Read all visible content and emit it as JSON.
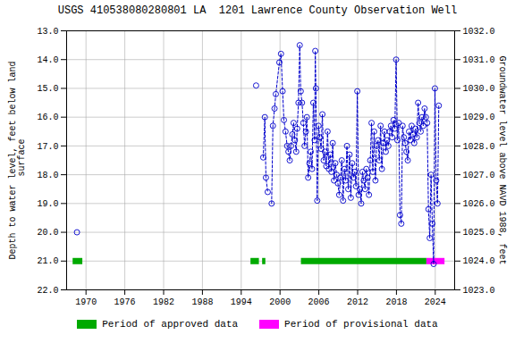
{
  "chart_data": {
    "type": "line",
    "title": "USGS 410538080280801 LA  1201 Lawrence County Observation Well",
    "ylabel": "Depth to water level, feet below land\n surface",
    "y2label": "Groundwater level above NAVD 1988, feet",
    "x": [
      1968.6,
      null,
      1996.3,
      null,
      1997.4,
      1997.65,
      1997.82,
      1998.1,
      null,
      1998.7,
      1998.9,
      1999.15,
      1999.35,
      1999.9,
      2000.15,
      2000.4,
      2000.6,
      2000.85,
      2001.1,
      2001.3,
      2001.5,
      2001.7,
      2001.9,
      2002.1,
      2002.3,
      2002.5,
      2002.65,
      2002.85,
      2003.05,
      2003.2,
      2003.4,
      2003.6,
      2003.8,
      2004.0,
      2004.15,
      2004.35,
      2004.55,
      2004.75,
      2004.95,
      2005.15,
      2005.35,
      2005.45,
      2005.55,
      2005.75,
      2005.95,
      2006.15,
      2006.35,
      2006.55,
      2006.75,
      2006.95,
      2007.15,
      2007.35,
      2007.55,
      2007.75,
      2007.95,
      2008.15,
      2008.35,
      2008.55,
      2008.75,
      2008.95,
      2009.15,
      2009.35,
      2009.55,
      2009.75,
      2009.95,
      2010.15,
      2010.35,
      2010.55,
      2010.75,
      2010.95,
      2011.15,
      2011.35,
      2011.55,
      2011.75,
      2011.95,
      2012.15,
      2012.35,
      2012.55,
      2012.75,
      2012.95,
      2013.15,
      2013.35,
      2013.55,
      2013.75,
      2013.95,
      2014.15,
      2014.35,
      2014.55,
      2014.75,
      2014.95,
      2015.15,
      2015.35,
      2015.55,
      2015.75,
      2015.95,
      2016.15,
      2016.35,
      2016.55,
      2016.75,
      2016.95,
      2017.15,
      2017.35,
      2017.55,
      2017.75,
      2017.95,
      2018.15,
      2018.35,
      2018.55,
      2018.75,
      2018.95,
      2019.15,
      2019.35,
      2019.55,
      2019.75,
      2019.95,
      2020.15,
      2020.35,
      2020.55,
      2020.75,
      2020.95,
      2021.15,
      2021.35,
      2021.55,
      2021.75,
      2021.95,
      2022.15,
      2022.35,
      2022.55,
      2022.75,
      2022.95,
      2023.15,
      2023.35,
      2023.55,
      2023.75,
      2023.95,
      2024.15,
      2024.35,
      2024.55
    ],
    "values": [
      20.0,
      null,
      14.9,
      null,
      17.4,
      16.0,
      18.1,
      18.6,
      null,
      19.0,
      16.3,
      15.7,
      15.2,
      14.1,
      13.8,
      15.1,
      16.1,
      16.5,
      17.0,
      17.2,
      17.5,
      17.0,
      16.6,
      16.2,
      16.8,
      17.2,
      16.4,
      15.5,
      13.5,
      15.1,
      15.5,
      16.2,
      17.0,
      16.5,
      16.0,
      18.1,
      17.6,
      17.2,
      17.8,
      15.5,
      16.8,
      13.7,
      15.0,
      18.9,
      16.3,
      16.7,
      17.1,
      15.9,
      17.5,
      17.2,
      17.7,
      16.5,
      17.8,
      17.3,
      17.9,
      16.9,
      18.2,
      17.6,
      18.0,
      18.3,
      18.7,
      18.1,
      17.5,
      18.9,
      17.8,
      18.2,
      17.0,
      18.5,
      17.3,
      18.8,
      17.6,
      18.1,
      17.9,
      18.4,
      15.1,
      18.7,
      18.5,
      19.0,
      17.9,
      18.2,
      18.5,
      17.8,
      18.1,
      18.7,
      17.5,
      16.2,
      17.9,
      16.5,
      18.2,
      17.0,
      16.8,
      17.5,
      16.3,
      17.8,
      16.9,
      16.5,
      17.2,
      16.8,
      17.0,
      16.5,
      16.3,
      16.7,
      16.1,
      16.4,
      14.0,
      16.8,
      16.2,
      19.4,
      19.7,
      16.3,
      16.7,
      16.9,
      17.2,
      17.5,
      16.5,
      16.8,
      16.3,
      16.6,
      16.9,
      16.4,
      16.7,
      15.5,
      16.2,
      16.5,
      16.0,
      16.3,
      15.7,
      16.0,
      16.2,
      19.2,
      20.2,
      18.0,
      19.7,
      21.1,
      15.0,
      18.2,
      19.0,
      15.6
    ],
    "color": "#0000CC",
    "marker": "o",
    "line_style": "dashed",
    "xlim": [
      1967,
      2027
    ],
    "xticks": [
      1970,
      1976,
      1982,
      1988,
      1994,
      2000,
      2006,
      2012,
      2018,
      2024
    ],
    "ylim": [
      22.0,
      13.0
    ],
    "yticks": [
      {
        "value": 13.0,
        "label": "13.0"
      },
      {
        "value": 14.0,
        "label": "14.0"
      },
      {
        "value": 15.0,
        "label": "15.0"
      },
      {
        "value": 16.0,
        "label": "16.0"
      },
      {
        "value": 17.0,
        "label": "17.0"
      },
      {
        "value": 18.0,
        "label": "18.0"
      },
      {
        "value": 19.0,
        "label": "19.0"
      },
      {
        "value": 20.0,
        "label": "20.0"
      },
      {
        "value": 21.0,
        "label": "21.0"
      },
      {
        "value": 22.0,
        "label": "22.0"
      }
    ],
    "y2lim": [
      1023.0,
      1032.0
    ],
    "y2ticks": [
      {
        "value": 1032.0,
        "label": "1032.0"
      },
      {
        "value": 1031.0,
        "label": "1031.0"
      },
      {
        "value": 1030.0,
        "label": "1030.0"
      },
      {
        "value": 1029.0,
        "label": "1029.0"
      },
      {
        "value": 1028.0,
        "label": "1028.0"
      },
      {
        "value": 1027.0,
        "label": "1027.0"
      },
      {
        "value": 1026.0,
        "label": "1026.0"
      },
      {
        "value": 1025.0,
        "label": "1025.0"
      },
      {
        "value": 1024.0,
        "label": "1024.0"
      },
      {
        "value": 1023.0,
        "label": "1023.0"
      }
    ],
    "grid": true,
    "legend": "bottom",
    "period_y": 21.0,
    "periods": [
      {
        "name": "Period of approved data",
        "color": "#00AA00",
        "ranges": [
          [
            1968.0,
            1969.5
          ],
          [
            1995.5,
            1996.8
          ],
          [
            1997.3,
            1997.8
          ],
          [
            2003.3,
            2022.7
          ]
        ]
      },
      {
        "name": "Period of provisional data",
        "color": "#FF00FF",
        "ranges": [
          [
            2022.7,
            2025.5
          ]
        ]
      }
    ]
  }
}
